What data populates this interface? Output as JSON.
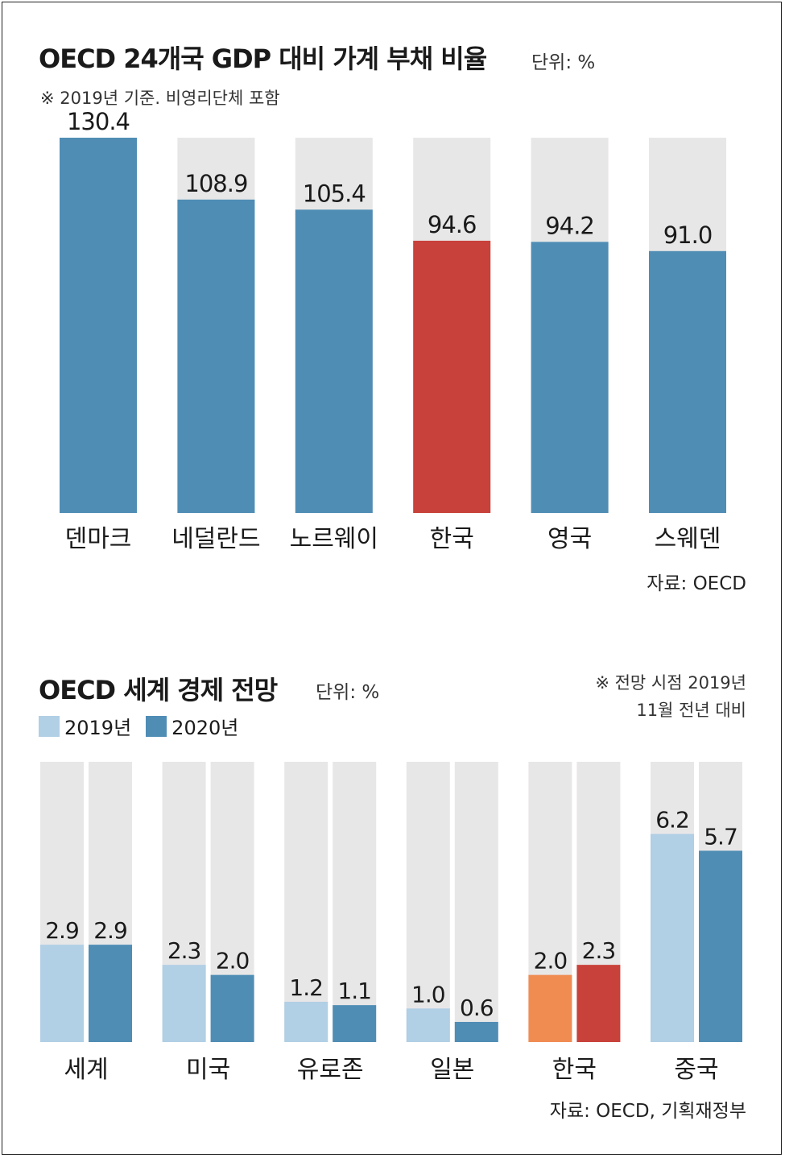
{
  "chart1": {
    "title": "OECD 24개국 GDP 대비 가계 부채 비율",
    "unit": "단위: %",
    "note": "※ 2019년 기준. 비영리단체 포함",
    "source": "자료: OECD"
  },
  "chart2": {
    "title": "OECD 세계 경제 전망",
    "unit": "단위: %",
    "note_line1": "※ 전망 시점 2019년",
    "note_line2": "11월 전년 대비",
    "legend_2019": "2019년",
    "legend_2020": "2020년",
    "source": "자료: OECD, 기획재정부"
  },
  "colors": {
    "blue": "#4f8db5",
    "red": "#c8413a",
    "light_blue": "#b1cfe5",
    "orange": "#f08c52",
    "track": "#e8e7e7"
  },
  "chart_data": [
    {
      "type": "bar",
      "title": "OECD 24개국 GDP 대비 가계 부채 비율",
      "categories": [
        "덴마크",
        "네덜란드",
        "노르웨이",
        "한국",
        "영국",
        "스웨덴"
      ],
      "values": [
        130.4,
        108.9,
        105.4,
        94.6,
        94.2,
        91.0
      ],
      "value_labels": [
        "130.4",
        "108.9",
        "105.4",
        "94.6",
        "94.2",
        "91.0"
      ],
      "highlight": "한국",
      "ylim": [
        0,
        130.4
      ],
      "grid": false
    },
    {
      "type": "bar",
      "title": "OECD 세계 경제 전망",
      "categories": [
        "세계",
        "미국",
        "유로존",
        "일본",
        "한국",
        "중국"
      ],
      "series": [
        {
          "name": "2019년",
          "values": [
            2.9,
            2.3,
            1.2,
            1.0,
            2.0,
            6.2
          ],
          "labels": [
            "2.9",
            "2.3",
            "1.2",
            "1.0",
            "2.0",
            "6.2"
          ]
        },
        {
          "name": "2020년",
          "values": [
            2.9,
            2.0,
            1.1,
            0.6,
            2.3,
            5.7
          ],
          "labels": [
            "2.9",
            "2.0",
            "1.1",
            "0.6",
            "2.3",
            "5.7"
          ]
        }
      ],
      "highlight": "한국",
      "legend": "top-left",
      "grid": false
    }
  ]
}
